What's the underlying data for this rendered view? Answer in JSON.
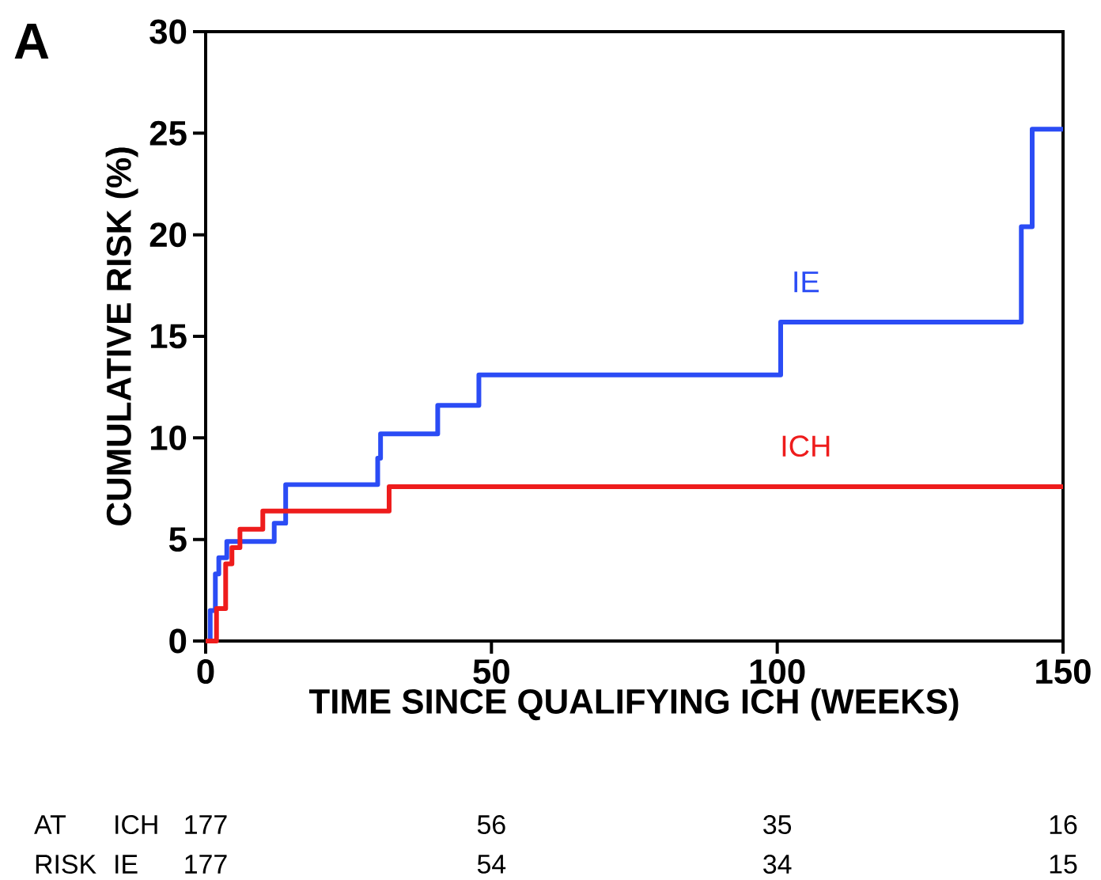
{
  "chart_data": {
    "type": "step",
    "xlabel": "TIME SINCE QUALIFYING ICH (WEEKS)",
    "ylabel": "CUMULATIVE RISK (%)",
    "xlim": [
      0,
      150
    ],
    "ylim": [
      0,
      30
    ],
    "xticks": [
      0,
      50,
      100,
      150
    ],
    "yticks": [
      0,
      5,
      10,
      15,
      20,
      25,
      30
    ],
    "grid": false,
    "legend": false,
    "series": [
      {
        "name": "IE",
        "color": "#2b4cf5",
        "x": [
          0,
          0.8,
          1.7,
          2.3,
          3.7,
          12.0,
          14.0,
          30.1,
          30.6,
          40.6,
          47.8,
          100.6,
          142.7,
          144.6,
          150
        ],
        "values": [
          0,
          1.5,
          3.3,
          4.1,
          4.9,
          5.8,
          7.7,
          9.0,
          10.2,
          11.6,
          13.1,
          15.7,
          20.4,
          25.2,
          25.2
        ]
      },
      {
        "name": "ICH",
        "color": "#ee1c1c",
        "x": [
          0,
          1.9,
          3.5,
          4.6,
          6.0,
          10.0,
          32.1,
          150
        ],
        "values": [
          0,
          1.6,
          3.8,
          4.6,
          5.5,
          6.4,
          7.6,
          7.6
        ]
      }
    ],
    "annotations": [
      "A",
      "AT",
      "RISK",
      "ICH",
      "IE",
      "177",
      "56",
      "35",
      "16",
      "177",
      "54",
      "34",
      "15"
    ]
  }
}
